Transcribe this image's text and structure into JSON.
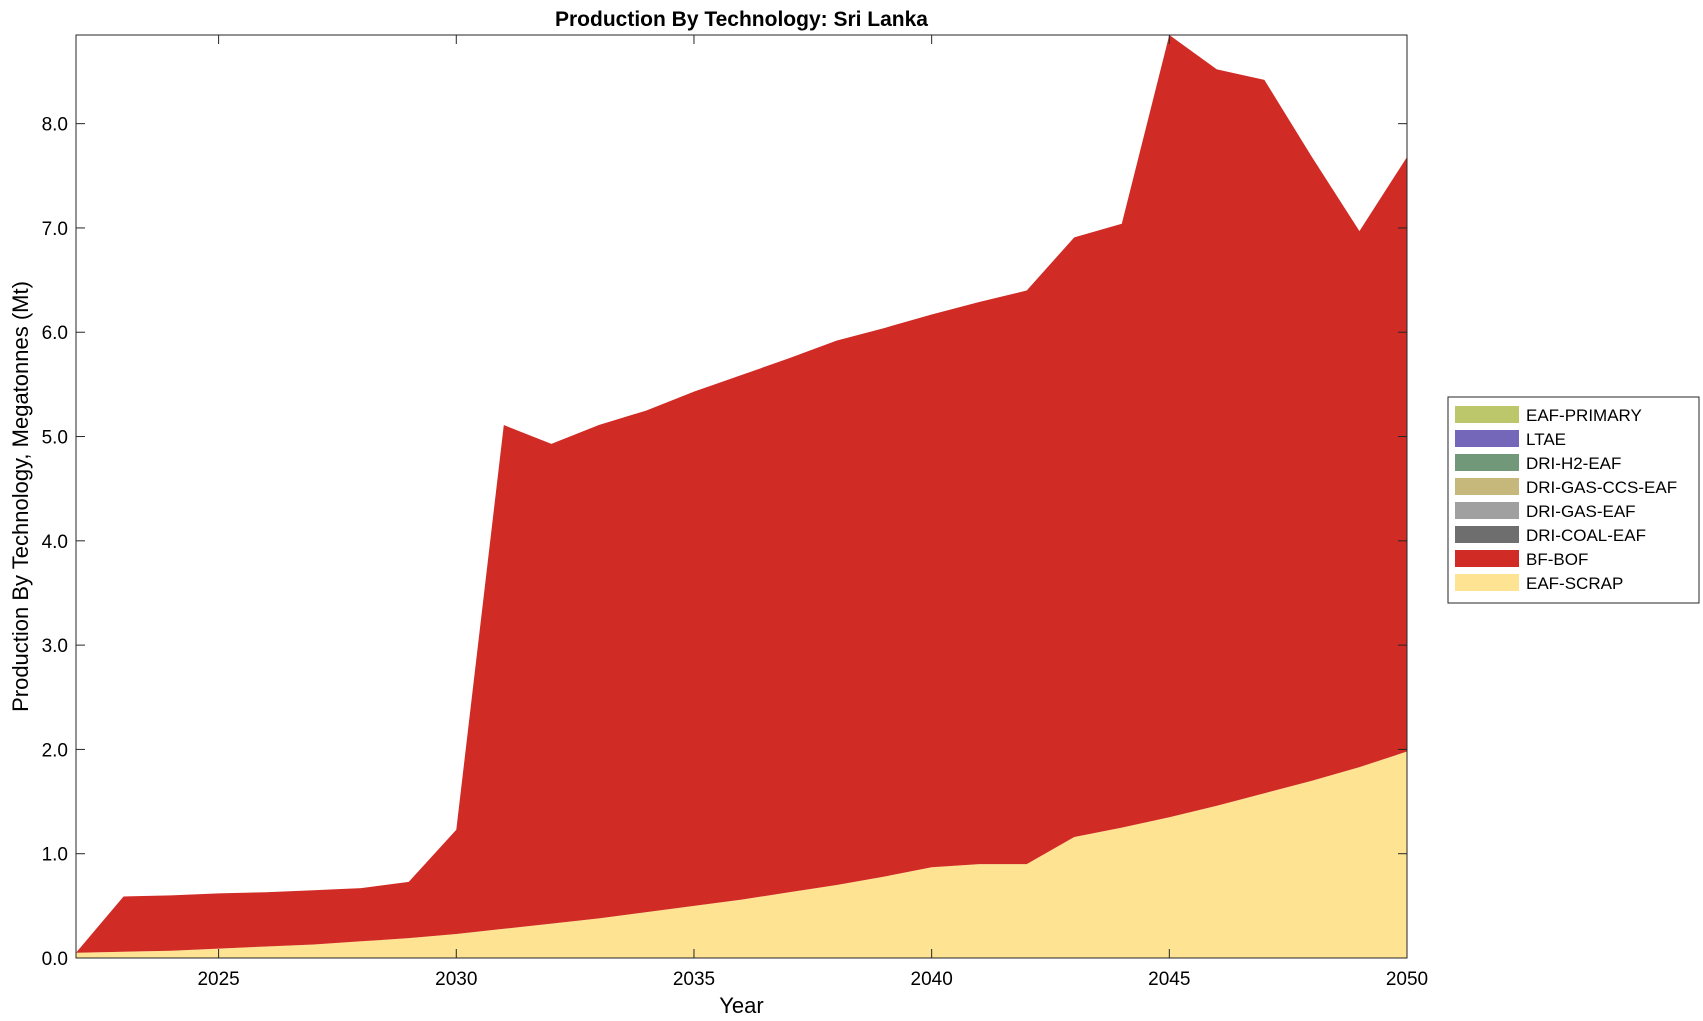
{
  "chart_data": {
    "type": "area",
    "title": "Production By Technology: Sri Lanka",
    "xlabel": "Year",
    "ylabel": "Production By Technology, Megatonnes (Mt)",
    "xlim": [
      2022,
      2050
    ],
    "ylim": [
      0,
      8.85
    ],
    "xticks": [
      2025,
      2030,
      2035,
      2040,
      2045,
      2050
    ],
    "yticks": [
      0,
      1,
      2,
      3,
      4,
      5,
      6,
      7,
      8
    ],
    "ytick_labels": [
      "0.0",
      "1.0",
      "2.0",
      "3.0",
      "4.0",
      "5.0",
      "6.0",
      "7.0",
      "8.0"
    ],
    "stacked": true,
    "legend_position": "right",
    "x": [
      2022,
      2023,
      2024,
      2025,
      2026,
      2027,
      2028,
      2029,
      2030,
      2031,
      2032,
      2033,
      2034,
      2035,
      2036,
      2037,
      2038,
      2039,
      2040,
      2041,
      2042,
      2043,
      2044,
      2045,
      2046,
      2047,
      2048,
      2049,
      2050
    ],
    "series": [
      {
        "name": "EAF-SCRAP",
        "color": "#fde392",
        "values": [
          0.05,
          0.06,
          0.07,
          0.09,
          0.11,
          0.13,
          0.16,
          0.19,
          0.23,
          0.28,
          0.33,
          0.38,
          0.44,
          0.5,
          0.56,
          0.63,
          0.7,
          0.78,
          0.87,
          0.9,
          0.9,
          1.16,
          1.25,
          1.35,
          1.46,
          1.58,
          1.7,
          1.83,
          1.98
        ]
      },
      {
        "name": "BF-BOF",
        "color": "#d12b25",
        "values": [
          0.0,
          0.53,
          0.53,
          0.53,
          0.52,
          0.52,
          0.51,
          0.54,
          1.0,
          4.83,
          4.6,
          4.73,
          4.81,
          4.93,
          5.03,
          5.12,
          5.22,
          5.26,
          5.3,
          5.39,
          5.5,
          5.75,
          5.79,
          7.5,
          7.06,
          6.84,
          5.98,
          5.14,
          5.7
        ]
      },
      {
        "name": "DRI-COAL-EAF",
        "color": "#6e6e6e",
        "values": [
          0,
          0,
          0,
          0,
          0,
          0,
          0,
          0,
          0,
          0,
          0,
          0,
          0,
          0,
          0,
          0,
          0,
          0,
          0,
          0,
          0,
          0,
          0,
          0,
          0,
          0,
          0,
          0,
          0
        ]
      },
      {
        "name": "DRI-GAS-EAF",
        "color": "#a0a0a0",
        "values": [
          0,
          0,
          0,
          0,
          0,
          0,
          0,
          0,
          0,
          0,
          0,
          0,
          0,
          0,
          0,
          0,
          0,
          0,
          0,
          0,
          0,
          0,
          0,
          0,
          0,
          0,
          0,
          0,
          0
        ]
      },
      {
        "name": "DRI-GAS-CCS-EAF",
        "color": "#c5b87a",
        "values": [
          0,
          0,
          0,
          0,
          0,
          0,
          0,
          0,
          0,
          0,
          0,
          0,
          0,
          0,
          0,
          0,
          0,
          0,
          0,
          0,
          0,
          0,
          0,
          0,
          0,
          0,
          0,
          0,
          0
        ]
      },
      {
        "name": "DRI-H2-EAF",
        "color": "#72987a",
        "values": [
          0,
          0,
          0,
          0,
          0,
          0,
          0,
          0,
          0,
          0,
          0,
          0,
          0,
          0,
          0,
          0,
          0,
          0,
          0,
          0,
          0,
          0,
          0,
          0,
          0,
          0,
          0,
          0,
          0
        ]
      },
      {
        "name": "LTAE",
        "color": "#7467ba",
        "values": [
          0,
          0,
          0,
          0,
          0,
          0,
          0,
          0,
          0,
          0,
          0,
          0,
          0,
          0,
          0,
          0,
          0,
          0,
          0,
          0,
          0,
          0,
          0,
          0,
          0,
          0,
          0,
          0,
          0
        ]
      },
      {
        "name": "EAF-PRIMARY",
        "color": "#bcc66a",
        "values": [
          0,
          0,
          0,
          0,
          0,
          0,
          0,
          0,
          0,
          0,
          0,
          0,
          0,
          0,
          0,
          0,
          0,
          0,
          0,
          0,
          0,
          0,
          0,
          0,
          0,
          0,
          0,
          0,
          0
        ]
      }
    ],
    "legend_order": [
      "EAF-PRIMARY",
      "LTAE",
      "DRI-H2-EAF",
      "DRI-GAS-CCS-EAF",
      "DRI-GAS-EAF",
      "DRI-COAL-EAF",
      "BF-BOF",
      "EAF-SCRAP"
    ]
  }
}
